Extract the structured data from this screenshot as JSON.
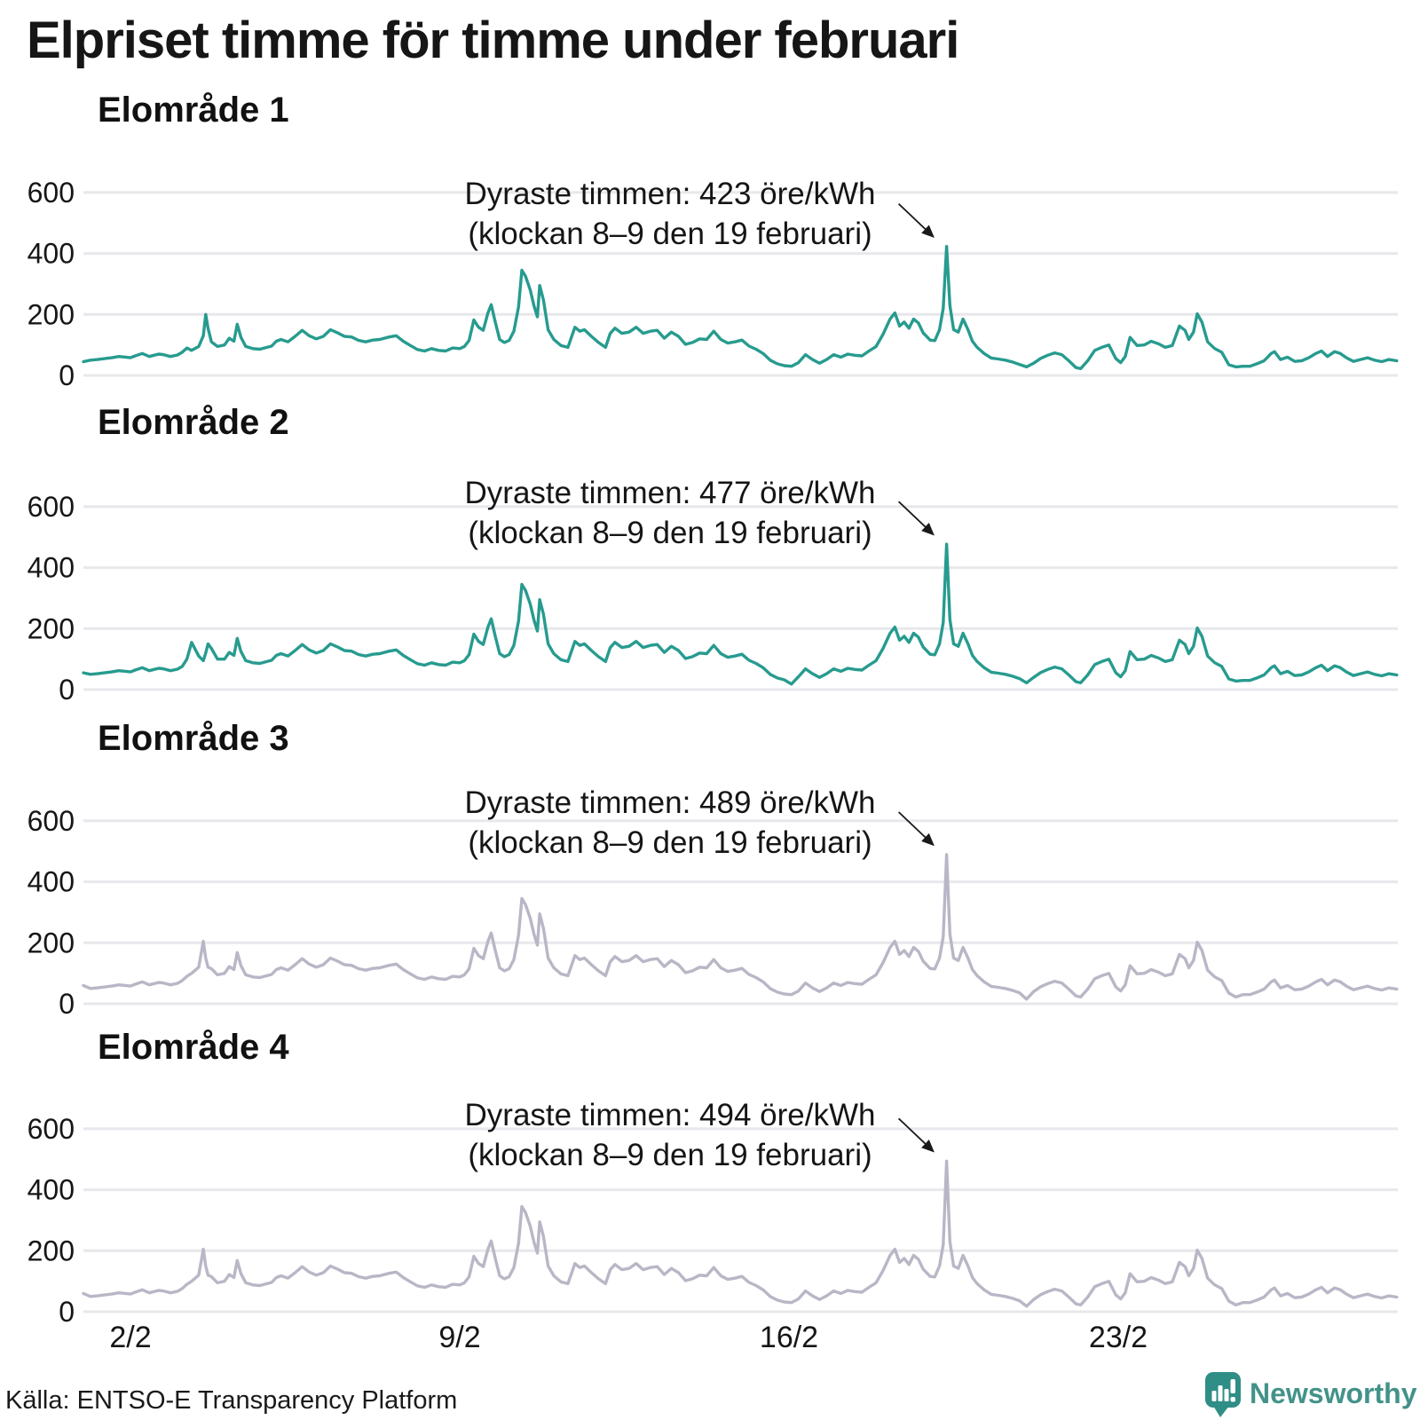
{
  "header": {
    "title": "Elpriset timme för timme under februari"
  },
  "footer": {
    "source": "Källa: ENTSO-E Transparency Platform",
    "brand": "Newsworthy"
  },
  "colors": {
    "teal_line": "#279b8f",
    "gray_line": "#b9b6c6",
    "grid": "#e8e7eb",
    "text": "#161616",
    "brand_teal": "#2f8e86",
    "brand_text_teal": "#43928a"
  },
  "chart_data": {
    "type": "line",
    "title": "Elpriset timme för timme under februari",
    "unit": "öre/kWh",
    "x_axis": {
      "tick_labels": [
        "2/2",
        "9/2",
        "16/2",
        "23/2"
      ],
      "tick_days": [
        2,
        9,
        16,
        23
      ],
      "domain_days": [
        1,
        28.92
      ],
      "grid": false
    },
    "y_axis": {
      "ticks": [
        600,
        400,
        200,
        0
      ],
      "range": [
        0,
        600
      ],
      "grid": true
    },
    "x_days": [
      1.0,
      1.15,
      1.3,
      1.45,
      1.6,
      1.75,
      1.9,
      2.0,
      2.1,
      2.25,
      2.4,
      2.5,
      2.6,
      2.7,
      2.85,
      3.0,
      3.1,
      3.2,
      3.3,
      3.45,
      3.55,
      3.6,
      3.65,
      3.72,
      3.85,
      4.0,
      4.1,
      4.2,
      4.27,
      4.35,
      4.45,
      4.6,
      4.75,
      4.9,
      5.0,
      5.1,
      5.2,
      5.35,
      5.5,
      5.65,
      5.8,
      5.95,
      6.1,
      6.25,
      6.4,
      6.55,
      6.7,
      6.85,
      7.0,
      7.15,
      7.3,
      7.5,
      7.65,
      7.8,
      7.95,
      8.1,
      8.25,
      8.4,
      8.55,
      8.7,
      8.85,
      9.0,
      9.1,
      9.2,
      9.3,
      9.4,
      9.5,
      9.6,
      9.67,
      9.75,
      9.85,
      9.95,
      10.05,
      10.15,
      10.25,
      10.32,
      10.4,
      10.5,
      10.58,
      10.65,
      10.7,
      10.78,
      10.88,
      11.0,
      11.15,
      11.3,
      11.45,
      11.55,
      11.65,
      11.8,
      11.95,
      12.1,
      12.2,
      12.3,
      12.45,
      12.6,
      12.75,
      12.9,
      13.05,
      13.2,
      13.35,
      13.5,
      13.65,
      13.8,
      13.95,
      14.1,
      14.25,
      14.4,
      14.55,
      14.7,
      14.85,
      15.0,
      15.15,
      15.3,
      15.45,
      15.6,
      15.75,
      15.9,
      16.05,
      16.2,
      16.35,
      16.5,
      16.65,
      16.8,
      16.95,
      17.1,
      17.25,
      17.4,
      17.55,
      17.7,
      17.85,
      18.0,
      18.15,
      18.25,
      18.35,
      18.45,
      18.55,
      18.65,
      18.75,
      18.85,
      19.0,
      19.1,
      19.2,
      19.28,
      19.35,
      19.42,
      19.5,
      19.6,
      19.7,
      19.8,
      19.9,
      20.0,
      20.15,
      20.3,
      20.45,
      20.6,
      20.75,
      20.9,
      21.05,
      21.2,
      21.35,
      21.5,
      21.65,
      21.8,
      21.95,
      22.1,
      22.2,
      22.35,
      22.5,
      22.65,
      22.8,
      22.95,
      23.05,
      23.15,
      23.25,
      23.4,
      23.55,
      23.7,
      23.85,
      24.0,
      24.15,
      24.3,
      24.42,
      24.5,
      24.6,
      24.68,
      24.78,
      24.9,
      25.05,
      25.2,
      25.35,
      25.5,
      25.65,
      25.8,
      25.95,
      26.1,
      26.25,
      26.32,
      26.45,
      26.6,
      26.75,
      26.9,
      27.05,
      27.2,
      27.32,
      27.45,
      27.6,
      27.72,
      27.85,
      28.0,
      28.15,
      28.3,
      28.45,
      28.6,
      28.75,
      28.92
    ],
    "base_values": [
      45,
      50,
      52,
      55,
      58,
      62,
      60,
      58,
      64,
      72,
      62,
      66,
      70,
      68,
      62,
      67,
      76,
      90,
      82,
      95,
      130,
      200,
      155,
      110,
      95,
      100,
      122,
      112,
      168,
      125,
      95,
      88,
      86,
      92,
      96,
      112,
      118,
      110,
      128,
      148,
      130,
      120,
      128,
      150,
      140,
      128,
      126,
      115,
      110,
      116,
      118,
      126,
      130,
      112,
      98,
      85,
      80,
      88,
      82,
      80,
      90,
      88,
      95,
      115,
      182,
      158,
      148,
      205,
      232,
      178,
      118,
      108,
      115,
      145,
      225,
      345,
      325,
      280,
      228,
      192,
      295,
      248,
      150,
      118,
      98,
      92,
      158,
      145,
      150,
      128,
      108,
      92,
      138,
      155,
      138,
      142,
      158,
      138,
      145,
      148,
      122,
      142,
      128,
      102,
      108,
      120,
      118,
      145,
      118,
      106,
      110,
      116,
      96,
      86,
      72,
      50,
      38,
      32,
      30,
      42,
      68,
      52,
      40,
      52,
      68,
      60,
      70,
      66,
      64,
      80,
      95,
      135,
      185,
      205,
      162,
      175,
      155,
      185,
      172,
      140,
      116,
      114,
      150,
      220,
      423,
      230,
      150,
      142,
      185,
      152,
      112,
      92,
      72,
      57,
      54,
      50,
      44,
      36,
      28,
      40,
      56,
      66,
      74,
      68,
      48,
      26,
      22,
      48,
      82,
      92,
      100,
      55,
      42,
      62,
      125,
      98,
      100,
      112,
      104,
      92,
      98,
      162,
      148,
      118,
      142,
      202,
      175,
      110,
      88,
      76,
      35,
      28,
      30,
      30,
      38,
      48,
      72,
      78,
      52,
      60,
      46,
      48,
      58,
      72,
      80,
      62,
      78,
      72,
      58,
      46,
      52,
      58,
      50,
      45,
      52,
      48
    ],
    "panels": [
      {
        "title": "Elområde 1",
        "color": "#279b8f",
        "max_value": 423,
        "max_time": "klockan 8–9 den 19 februari",
        "annotation_line1": "Dyraste timmen: 423 öre/kWh",
        "annotation_line2": "(klockan 8–9 den 19 februari)",
        "overrides": {}
      },
      {
        "title": "Elområde 2",
        "color": "#279b8f",
        "max_value": 477,
        "max_time": "klockan 8–9 den 19 februari",
        "annotation_line1": "Dyraste timmen: 477 öre/kWh",
        "annotation_line2": "(klockan 8–9 den 19 februari)",
        "overrides": {
          "0": 55,
          "17": 100,
          "18": 155,
          "19": 110,
          "20": 95,
          "21": 120,
          "22": 150,
          "23": 135,
          "24": 100,
          "118": 18,
          "144": 477,
          "158": 22
        }
      },
      {
        "title": "Elområde 3",
        "color": "#b9b6c6",
        "max_value": 489,
        "max_time": "klockan 8–9 den 19 februari",
        "annotation_line1": "Dyraste timmen: 489 öre/kWh",
        "annotation_line2": "(klockan 8–9 den 19 februari)",
        "overrides": {
          "0": 60,
          "18": 100,
          "19": 120,
          "20": 205,
          "21": 150,
          "22": 120,
          "23": 115,
          "144": 489,
          "158": 15,
          "191": 22
        }
      },
      {
        "title": "Elområde 4",
        "color": "#b9b6c6",
        "max_value": 494,
        "max_time": "klockan 8–9 den 19 februari",
        "annotation_line1": "Dyraste timmen: 494 öre/kWh",
        "annotation_line2": "(klockan 8–9 den 19 februari)",
        "overrides": {
          "0": 60,
          "18": 100,
          "19": 120,
          "20": 205,
          "21": 150,
          "22": 120,
          "23": 115,
          "144": 494,
          "158": 18,
          "191": 22
        }
      }
    ]
  }
}
